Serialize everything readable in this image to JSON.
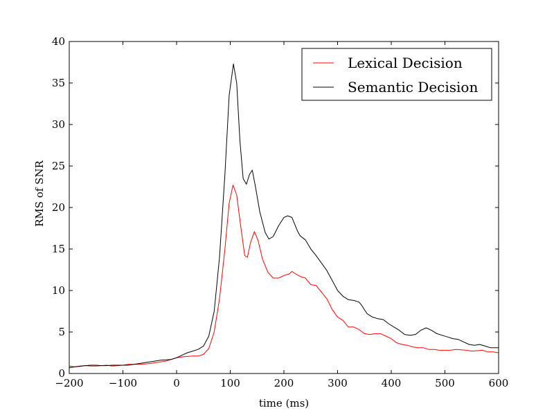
{
  "chart_data": {
    "type": "line",
    "title": "",
    "xlabel": "time (ms)",
    "ylabel": "RMS of SNR",
    "xlim": [
      -200,
      600
    ],
    "ylim": [
      0,
      40
    ],
    "xticks": [
      -200,
      -100,
      0,
      100,
      200,
      300,
      400,
      500,
      600
    ],
    "yticks": [
      0,
      5,
      10,
      15,
      20,
      25,
      30,
      35,
      40
    ],
    "xtick_labels": [
      "−200",
      "−100",
      "0",
      "100",
      "200",
      "300",
      "400",
      "500",
      "600"
    ],
    "ytick_labels": [
      "0",
      "5",
      "10",
      "15",
      "20",
      "25",
      "30",
      "35",
      "40"
    ],
    "grid": false,
    "legend_position": "top-right",
    "series": [
      {
        "name": "Lexical Decision",
        "color": "#ff0000",
        "points": [
          [
            -200,
            0.9
          ],
          [
            -190,
            0.8
          ],
          [
            -180,
            0.85
          ],
          [
            -170,
            0.95
          ],
          [
            -160,
            0.9
          ],
          [
            -150,
            0.9
          ],
          [
            -140,
            0.95
          ],
          [
            -130,
            1.0
          ],
          [
            -120,
            0.9
          ],
          [
            -110,
            0.95
          ],
          [
            -100,
            1.0
          ],
          [
            -90,
            1.1
          ],
          [
            -80,
            1.1
          ],
          [
            -70,
            1.1
          ],
          [
            -60,
            1.15
          ],
          [
            -50,
            1.2
          ],
          [
            -40,
            1.3
          ],
          [
            -30,
            1.4
          ],
          [
            -20,
            1.5
          ],
          [
            -10,
            1.7
          ],
          [
            0,
            1.9
          ],
          [
            10,
            2.0
          ],
          [
            20,
            2.05
          ],
          [
            30,
            2.1
          ],
          [
            40,
            2.1
          ],
          [
            50,
            2.3
          ],
          [
            60,
            3.0
          ],
          [
            70,
            5.0
          ],
          [
            80,
            9.0
          ],
          [
            90,
            15.0
          ],
          [
            98,
            20.5
          ],
          [
            105,
            22.7
          ],
          [
            112,
            21.5
          ],
          [
            120,
            17.5
          ],
          [
            127,
            14.2
          ],
          [
            132,
            14.0
          ],
          [
            138,
            15.8
          ],
          [
            145,
            17.1
          ],
          [
            152,
            16.0
          ],
          [
            160,
            13.8
          ],
          [
            170,
            12.2
          ],
          [
            180,
            11.5
          ],
          [
            190,
            11.5
          ],
          [
            200,
            11.8
          ],
          [
            210,
            12.0
          ],
          [
            215,
            12.3
          ],
          [
            222,
            12.0
          ],
          [
            230,
            11.7
          ],
          [
            240,
            11.5
          ],
          [
            250,
            10.7
          ],
          [
            260,
            10.6
          ],
          [
            270,
            9.8
          ],
          [
            280,
            9.0
          ],
          [
            290,
            7.7
          ],
          [
            300,
            6.8
          ],
          [
            310,
            6.4
          ],
          [
            320,
            5.6
          ],
          [
            330,
            5.6
          ],
          [
            340,
            5.3
          ],
          [
            350,
            4.8
          ],
          [
            360,
            4.7
          ],
          [
            370,
            4.8
          ],
          [
            380,
            4.8
          ],
          [
            390,
            4.5
          ],
          [
            400,
            4.2
          ],
          [
            410,
            3.7
          ],
          [
            420,
            3.5
          ],
          [
            430,
            3.4
          ],
          [
            440,
            3.2
          ],
          [
            450,
            3.1
          ],
          [
            460,
            3.1
          ],
          [
            470,
            2.9
          ],
          [
            480,
            2.9
          ],
          [
            490,
            2.8
          ],
          [
            500,
            2.8
          ],
          [
            510,
            2.8
          ],
          [
            520,
            2.9
          ],
          [
            530,
            2.85
          ],
          [
            540,
            2.8
          ],
          [
            550,
            2.7
          ],
          [
            560,
            2.75
          ],
          [
            570,
            2.8
          ],
          [
            580,
            2.6
          ],
          [
            590,
            2.6
          ],
          [
            600,
            2.5
          ]
        ]
      },
      {
        "name": "Semantic Decision",
        "color": "#000000",
        "points": [
          [
            -200,
            0.7
          ],
          [
            -190,
            0.8
          ],
          [
            -180,
            0.9
          ],
          [
            -170,
            0.95
          ],
          [
            -160,
            1.0
          ],
          [
            -150,
            1.0
          ],
          [
            -140,
            0.95
          ],
          [
            -130,
            0.95
          ],
          [
            -120,
            1.0
          ],
          [
            -110,
            1.0
          ],
          [
            -100,
            1.0
          ],
          [
            -90,
            1.0
          ],
          [
            -80,
            1.1
          ],
          [
            -70,
            1.2
          ],
          [
            -60,
            1.3
          ],
          [
            -50,
            1.4
          ],
          [
            -40,
            1.5
          ],
          [
            -30,
            1.6
          ],
          [
            -20,
            1.65
          ],
          [
            -10,
            1.7
          ],
          [
            0,
            1.9
          ],
          [
            10,
            2.2
          ],
          [
            20,
            2.5
          ],
          [
            30,
            2.7
          ],
          [
            40,
            2.9
          ],
          [
            50,
            3.3
          ],
          [
            60,
            4.5
          ],
          [
            70,
            7.5
          ],
          [
            80,
            14.0
          ],
          [
            90,
            24.0
          ],
          [
            98,
            33.5
          ],
          [
            106,
            37.3
          ],
          [
            112,
            35.0
          ],
          [
            118,
            28.0
          ],
          [
            124,
            23.5
          ],
          [
            130,
            22.8
          ],
          [
            136,
            24.0
          ],
          [
            141,
            24.5
          ],
          [
            147,
            22.5
          ],
          [
            155,
            19.5
          ],
          [
            165,
            17.0
          ],
          [
            172,
            16.2
          ],
          [
            180,
            16.5
          ],
          [
            190,
            17.8
          ],
          [
            200,
            18.8
          ],
          [
            207,
            19.0
          ],
          [
            215,
            18.8
          ],
          [
            225,
            17.2
          ],
          [
            230,
            16.6
          ],
          [
            240,
            16.1
          ],
          [
            250,
            15.0
          ],
          [
            260,
            14.2
          ],
          [
            270,
            13.3
          ],
          [
            280,
            12.4
          ],
          [
            290,
            11.2
          ],
          [
            300,
            10.0
          ],
          [
            310,
            9.3
          ],
          [
            320,
            8.9
          ],
          [
            330,
            8.8
          ],
          [
            340,
            8.6
          ],
          [
            345,
            8.2
          ],
          [
            355,
            7.2
          ],
          [
            365,
            6.8
          ],
          [
            375,
            6.6
          ],
          [
            385,
            6.5
          ],
          [
            395,
            6.0
          ],
          [
            405,
            5.6
          ],
          [
            415,
            5.2
          ],
          [
            425,
            4.7
          ],
          [
            435,
            4.6
          ],
          [
            445,
            4.7
          ],
          [
            455,
            5.2
          ],
          [
            465,
            5.5
          ],
          [
            475,
            5.2
          ],
          [
            485,
            4.8
          ],
          [
            495,
            4.6
          ],
          [
            505,
            4.4
          ],
          [
            515,
            4.2
          ],
          [
            525,
            4.1
          ],
          [
            535,
            3.8
          ],
          [
            545,
            3.5
          ],
          [
            555,
            3.4
          ],
          [
            565,
            3.5
          ],
          [
            575,
            3.3
          ],
          [
            585,
            3.1
          ],
          [
            595,
            3.1
          ],
          [
            600,
            3.1
          ]
        ]
      }
    ]
  }
}
